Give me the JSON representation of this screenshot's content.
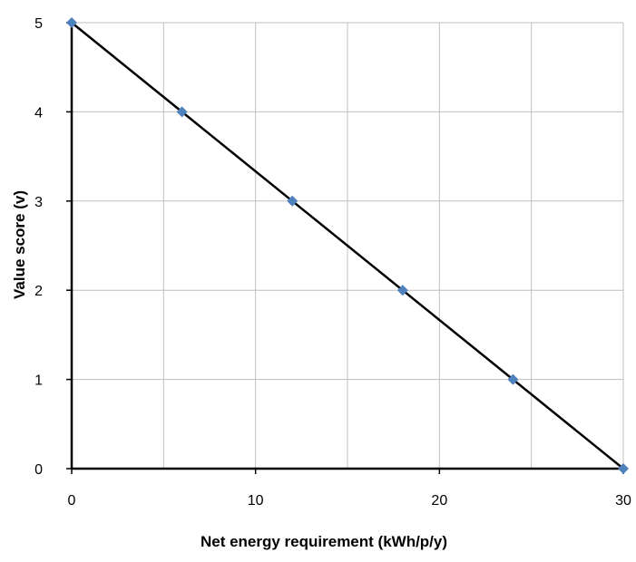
{
  "chart_data": {
    "type": "scatter",
    "title": "",
    "xlabel": "Net energy requirement (kWh/p/y)",
    "ylabel": "Value score (v)",
    "xlim": [
      0,
      30
    ],
    "ylim": [
      0,
      5
    ],
    "x_ticks": [
      0,
      10,
      20,
      30
    ],
    "y_ticks": [
      0,
      1,
      2,
      3,
      4,
      5
    ],
    "x_tick_labels": [
      "0",
      "10",
      "20",
      "30"
    ],
    "y_tick_labels": [
      "0",
      "1",
      "2",
      "3",
      "4",
      "5"
    ],
    "grid": true,
    "legend": "none",
    "series": [
      {
        "x": [
          0,
          6,
          12,
          18,
          24,
          30
        ],
        "y": [
          5,
          4,
          3,
          2,
          1,
          0
        ],
        "marker": "diamond",
        "marker_color": "#4f81bd",
        "line_color": "#000000"
      }
    ]
  }
}
